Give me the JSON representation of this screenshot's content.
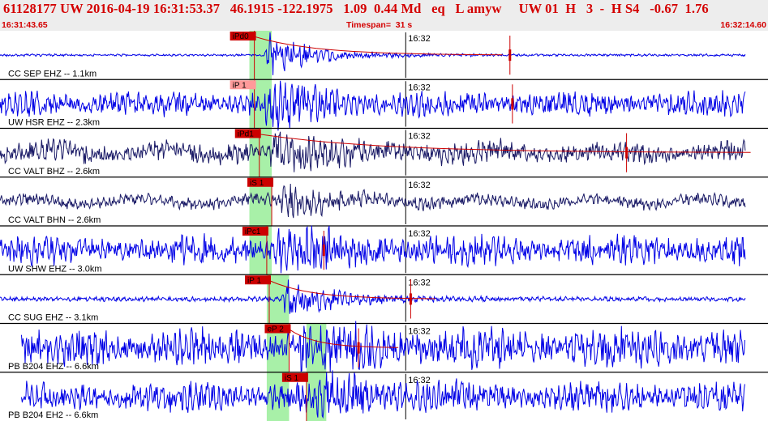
{
  "header": {
    "event_line": "61128177 UW 2016-04-19 16:31:53.37   46.1915 -122.1975   1.09  0.44 Md   eq   L amyw     UW 01  H   3  -  H S4   -0.67  1.76",
    "start_time": "16:31:43.65",
    "timespan": "Timespan=  31 s",
    "end_time": "16:32:14.60"
  },
  "colors": {
    "background": "#ffffff",
    "header_bg": "#ededed",
    "header_text": "#d40000",
    "trace_blue": "#0000e6",
    "trace_dark": "#1a1a66",
    "pick_red": "#cc0000",
    "pick_pending": "#ff9a9a",
    "window_green": "#a8f0a8",
    "divider": "#000000"
  },
  "chart_data": {
    "type": "line",
    "title": "61128177 UW 2016-04-19 16:31:53.37",
    "x_range": [
      "16:31:43.65",
      "16:32:14.60"
    ],
    "x_tick_label": "16:32",
    "channels": [
      {
        "label": "CC SEP EHZ -- 1.1km",
        "trace_color": "blue",
        "pick_label": "iPd0",
        "pick_style": "solid",
        "pick_time": "16:31:53.9",
        "s_marker_time": "16:32:04.2",
        "coda_end": "16:32:03.9",
        "window": [
          [
            "16:31:53.7",
            "16:31:54.6"
          ]
        ],
        "onset": "16:31:54.3",
        "noise": 0.05,
        "amp": 1.0,
        "lead_gap": 0.0
      },
      {
        "label": "UW HSR EHZ -- 2.3km",
        "trace_color": "blue",
        "pick_label": "iP 1",
        "pick_style": "pending",
        "pick_time": "16:31:53.9",
        "s_marker_time": "16:32:04.3",
        "coda_end": "",
        "window": [
          [
            "16:31:53.7",
            "16:31:54.6"
          ]
        ],
        "onset": "16:31:54.3",
        "noise": 0.45,
        "amp": 1.0,
        "lead_gap": 0.0
      },
      {
        "label": "CC VALT BHZ -- 2.6km",
        "trace_color": "dark",
        "pick_label": "iPd1",
        "pick_style": "solid",
        "pick_time": "16:31:54.1",
        "s_marker_time": "16:32:08.9",
        "coda_end": "16:32:13.9",
        "window": [
          [
            "16:31:53.7",
            "16:31:54.6"
          ]
        ],
        "onset": "16:31:54.4",
        "noise": 0.4,
        "amp": 0.8,
        "lead_gap": 0.0
      },
      {
        "label": "CC VALT BHN -- 2.6km",
        "trace_color": "dark",
        "pick_label": "iS 1",
        "pick_style": "solid",
        "pick_time": "16:31:54.6",
        "s_marker_time": "",
        "coda_end": "",
        "window": [
          [
            "16:31:53.7",
            "16:31:54.6"
          ]
        ],
        "onset": "16:31:54.9",
        "noise": 0.25,
        "amp": 0.7,
        "lead_gap": 0.0
      },
      {
        "label": "UW SHW EHZ -- 3.0km",
        "trace_color": "blue",
        "pick_label": "iPc1",
        "pick_style": "solid",
        "pick_time": "16:31:54.4",
        "s_marker_time": "16:31:56.7",
        "coda_end": "",
        "window": [
          [
            "16:31:53.7",
            "16:31:54.6"
          ]
        ],
        "onset": "16:31:54.6",
        "noise": 0.55,
        "amp": 1.0,
        "lead_gap": 0.0
      },
      {
        "label": "CC SUG EHZ -- 3.1km",
        "trace_color": "blue",
        "pick_label": "iP 1",
        "pick_style": "solid",
        "pick_time": "16:31:54.5",
        "s_marker_time": "16:32:00.2",
        "coda_end": "16:32:01.2",
        "window": [
          [
            "16:31:54.4",
            "16:31:55.3"
          ]
        ],
        "onset": "16:31:55.0",
        "noise": 0.1,
        "amp": 1.0,
        "lead_gap": 0.0
      },
      {
        "label": "PB B204 EHZ -- 6.6km",
        "trace_color": "blue",
        "pick_label": "eP 2",
        "pick_style": "solid",
        "pick_time": "16:31:55.3",
        "s_marker_time": "16:31:58.1",
        "coda_end": "16:31:59.7",
        "window": [
          [
            "16:31:54.4",
            "16:31:55.3"
          ],
          [
            "16:31:56.0",
            "16:31:56.8"
          ]
        ],
        "onset": "16:31:55.7",
        "noise": 0.7,
        "amp": 1.0,
        "lead_gap": 0.028
      },
      {
        "label": "PB B204 EH2 -- 6.6km",
        "trace_color": "blue",
        "pick_label": "iS 1",
        "pick_style": "solid",
        "pick_time": "16:31:56.0",
        "s_marker_time": "",
        "coda_end": "",
        "window": [
          [
            "16:31:54.4",
            "16:31:55.3"
          ],
          [
            "16:31:56.0",
            "16:31:56.8"
          ]
        ],
        "onset": "16:31:56.3",
        "noise": 0.55,
        "amp": 0.9,
        "lead_gap": 0.028
      }
    ]
  }
}
